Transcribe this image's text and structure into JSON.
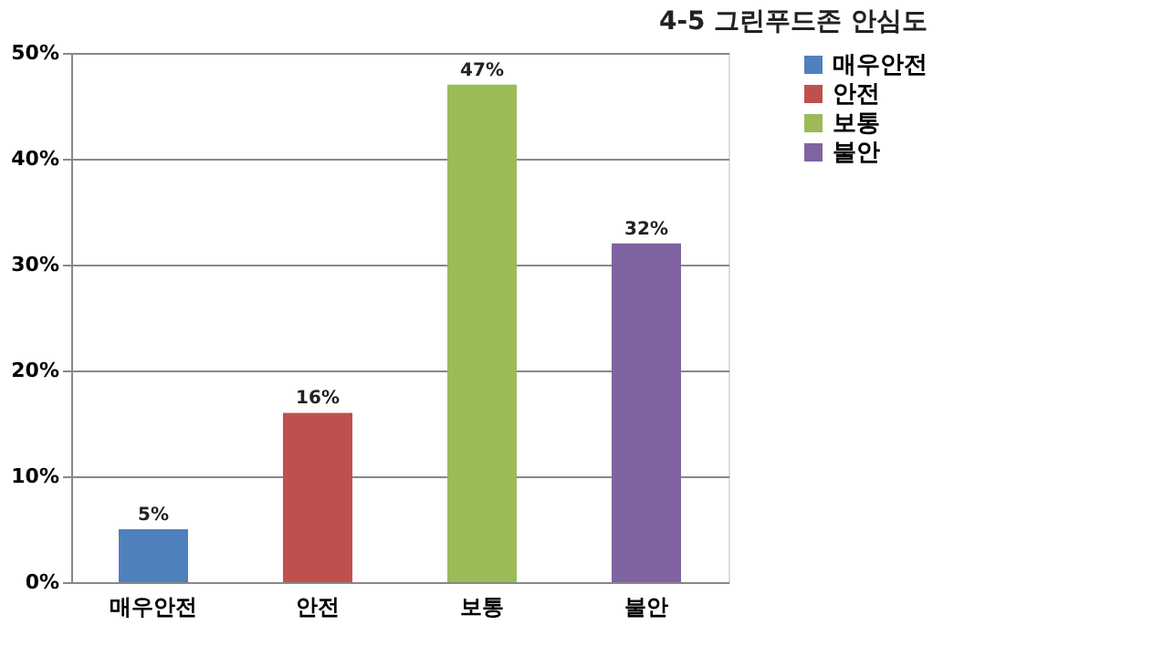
{
  "chart_data": {
    "type": "bar",
    "title": "4-5 그린푸드존 안심도",
    "categories": [
      "매우안전",
      "안전",
      "보통",
      "불안"
    ],
    "series": [
      {
        "name": "매우안전",
        "color": "#4f81bd",
        "values": [
          5,
          null,
          null,
          null
        ],
        "value_labels": [
          "5%",
          null,
          null,
          null
        ]
      },
      {
        "name": "안전",
        "color": "#c0504d",
        "values": [
          null,
          16,
          null,
          null
        ],
        "value_labels": [
          null,
          "16%",
          null,
          null
        ]
      },
      {
        "name": "보통",
        "color": "#9bbb59",
        "values": [
          null,
          null,
          47,
          null
        ],
        "value_labels": [
          null,
          null,
          "47%",
          null
        ]
      },
      {
        "name": "불안",
        "color": "#8064a2",
        "values": [
          null,
          null,
          null,
          32
        ],
        "value_labels": [
          null,
          null,
          null,
          "32%"
        ]
      }
    ],
    "ylim": [
      0,
      50
    ],
    "yticks": [
      {
        "value": 0,
        "label": "0%"
      },
      {
        "value": 10,
        "label": "10%"
      },
      {
        "value": 20,
        "label": "20%"
      },
      {
        "value": 30,
        "label": "30%"
      },
      {
        "value": 40,
        "label": "40%"
      },
      {
        "value": 50,
        "label": "50%"
      }
    ],
    "grid": "y",
    "legend": "right"
  }
}
